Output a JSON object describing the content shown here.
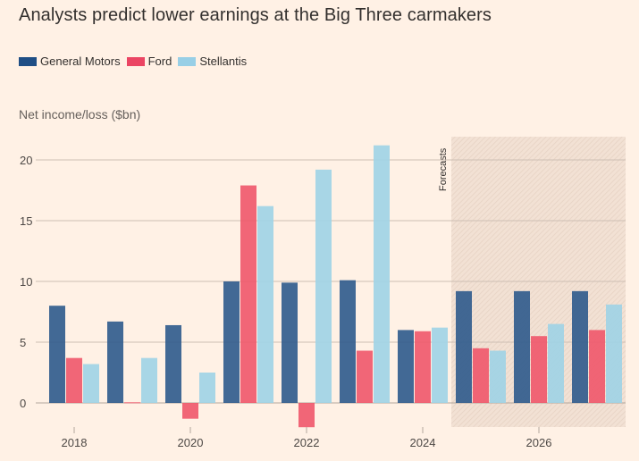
{
  "chart_data": {
    "type": "bar",
    "title": "Analysts predict lower earnings at the Big Three carmakers",
    "ylabel": "Net income/loss ($bn)",
    "xlabel": "",
    "categories": [
      "2018",
      "2019",
      "2020",
      "2021",
      "2022",
      "2023",
      "2024",
      "2025",
      "2026",
      "2027"
    ],
    "x_tick_labels": [
      "2018",
      "2020",
      "2022",
      "2024",
      "2026"
    ],
    "y_ticks": [
      0,
      5,
      10,
      15,
      20
    ],
    "ylim": [
      -2.5,
      22
    ],
    "grid": true,
    "legend_position": "top-left",
    "forecast_region": {
      "label": "Forecasts",
      "from_category": "2025",
      "to_category": "2027"
    },
    "series": [
      {
        "name": "General Motors",
        "color": "#2e5a8c",
        "values": [
          8.0,
          6.7,
          6.4,
          10.0,
          9.9,
          10.1,
          6.0,
          9.2,
          9.2,
          9.2
        ]
      },
      {
        "name": "Ford",
        "color": "#f0566a",
        "values": [
          3.7,
          0.05,
          -1.3,
          17.9,
          -2.0,
          4.3,
          5.9,
          4.5,
          5.5,
          6.0
        ]
      },
      {
        "name": "Stellantis",
        "color": "#9fd3e6",
        "values": [
          3.2,
          3.7,
          2.5,
          16.2,
          19.2,
          21.2,
          6.2,
          4.3,
          6.5,
          8.1
        ]
      }
    ]
  }
}
